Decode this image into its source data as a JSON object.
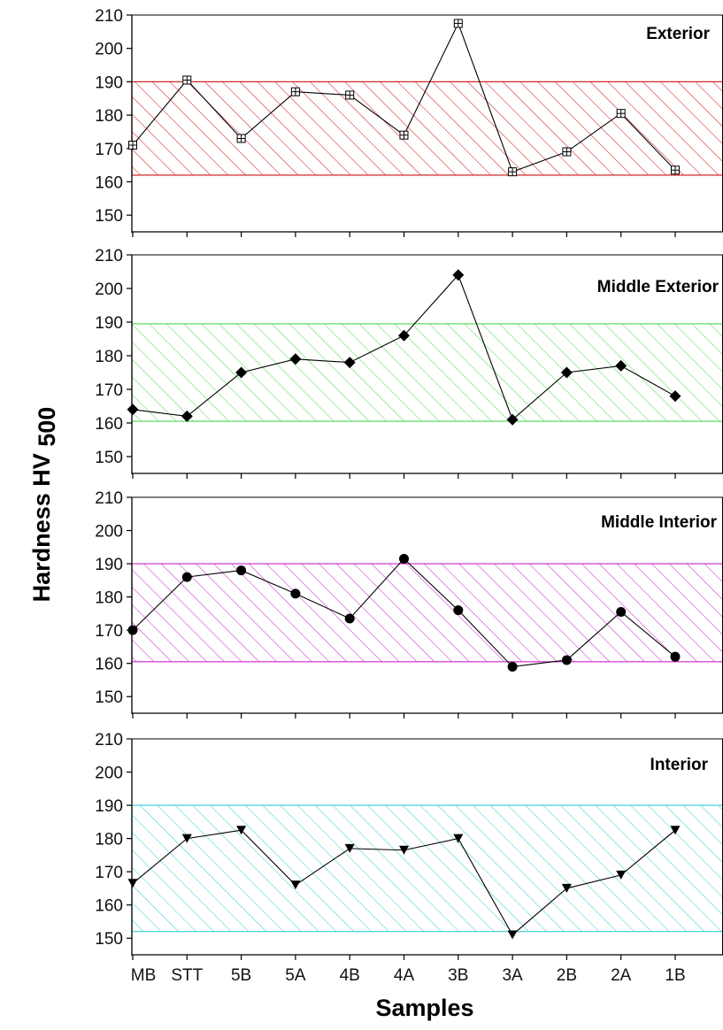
{
  "chart_data": {
    "type": "line",
    "ylabel": "Hardness HV",
    "ylabel_subscript": "500",
    "xlabel": "Samples",
    "categories": [
      "MB",
      "STT",
      "5B",
      "5A",
      "4B",
      "4A",
      "3B",
      "3A",
      "2B",
      "2A",
      "1B"
    ],
    "ylim": [
      145,
      210
    ],
    "yticks": [
      150,
      160,
      170,
      180,
      190,
      200,
      210
    ],
    "grid": false,
    "panels": [
      {
        "title": "Exterior",
        "band": [
          162,
          190
        ],
        "band_color": "#d42020",
        "marker": "square-plus",
        "values": [
          171,
          190.5,
          173,
          187,
          186,
          174,
          207.5,
          163,
          169,
          180.5,
          163.5
        ]
      },
      {
        "title": "Middle Exterior",
        "band": [
          160.5,
          189.5
        ],
        "band_color": "#5cd85c",
        "marker": "diamond",
        "values": [
          164,
          162,
          175,
          179,
          178,
          186,
          204,
          161,
          175,
          177,
          168
        ]
      },
      {
        "title": "Middle Interior",
        "band": [
          160.5,
          190
        ],
        "band_color": "#cc33cc",
        "marker": "circle",
        "values": [
          170,
          186,
          188,
          181,
          173.5,
          191.5,
          176,
          159,
          161,
          175.5,
          162
        ]
      },
      {
        "title": "Interior",
        "band": [
          152,
          190
        ],
        "band_color": "#40d0d8",
        "marker": "triangle-down",
        "values": [
          166.5,
          180,
          182.5,
          166,
          177,
          176.5,
          180,
          151,
          165,
          169,
          182.5
        ]
      }
    ]
  }
}
